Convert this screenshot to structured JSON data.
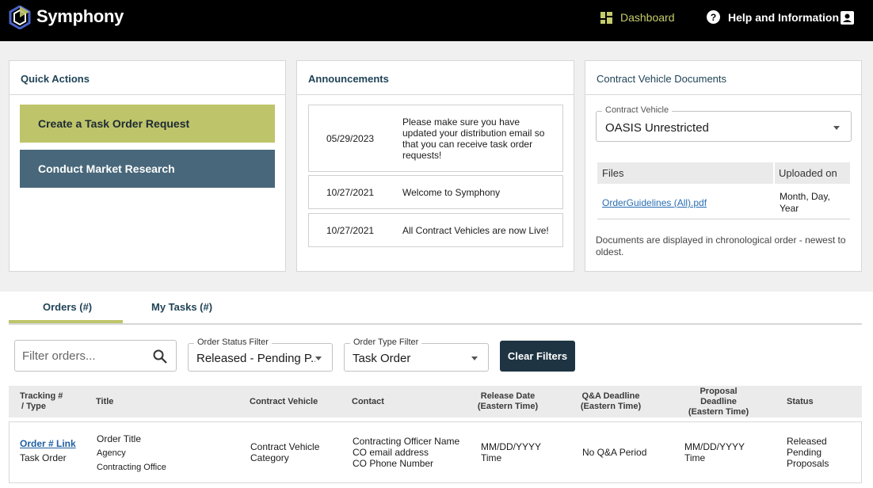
{
  "header": {
    "brand": "Symphony",
    "dashboard_label": "Dashboard",
    "help_label": "Help and Information"
  },
  "quick_actions": {
    "title": "Quick Actions",
    "create_label": "Create a Task Order Request",
    "research_label": "Conduct Market Research"
  },
  "announcements": {
    "title": "Announcements",
    "items": [
      {
        "date": "05/29/2023",
        "text": "Please make sure you have updated your distribution email so that you can receive task order requests!"
      },
      {
        "date": "10/27/2021",
        "text": "Welcome to Symphony"
      },
      {
        "date": "10/27/2021",
        "text": "All Contract Vehicles are now Live!"
      }
    ]
  },
  "cv_docs": {
    "title": "Contract Vehicle Documents",
    "field_label": "Contract Vehicle",
    "field_value": "OASIS Unrestricted",
    "col_files": "Files",
    "col_uploaded": "Uploaded on",
    "file_name": "OrderGuidelines (All).pdf",
    "file_date": "Month, Day, Year",
    "note": "Documents are displayed in chronological order - newest to oldest."
  },
  "tabs": {
    "orders": "Orders (#)",
    "tasks": "My Tasks (#)"
  },
  "filters": {
    "search_placeholder": "Filter orders...",
    "status_label": "Order Status Filter",
    "status_value": "Released - Pending P...",
    "type_label": "Order Type Filter",
    "type_value": "Task Order",
    "clear_label": "Clear Filters"
  },
  "table": {
    "headers": {
      "tracking": "Tracking #",
      "tracking2": "/ Type",
      "title": "Title",
      "vehicle": "Contract Vehicle",
      "contact": "Contact",
      "release": "Release Date",
      "release2": "(Eastern Time)",
      "qa": "Q&A Deadline",
      "qa2": "(Eastern Time)",
      "proposal": "Proposal",
      "proposal2": "Deadline",
      "proposal3": "(Eastern Time)",
      "status": "Status"
    },
    "row": {
      "order_link": "Order # Link",
      "order_type": "Task Order",
      "title": "Order Title",
      "agency": "Agency",
      "office": "Contracting Office",
      "vehicle": "Contract Vehicle",
      "category": "Category",
      "contact_name": "Contracting Officer Name",
      "contact_email": "CO email address",
      "contact_phone": "CO Phone Number",
      "release_date": "MM/DD/YYYY",
      "release_time": "Time",
      "qa": "No Q&A Period",
      "proposal_date": "MM/DD/YYYY",
      "proposal_time": "Time",
      "status1": "Released",
      "status2": "Pending",
      "status3": "Proposals"
    }
  },
  "colors": {
    "accent_green": "#bec46a",
    "slate_blue": "#48677a",
    "navy": "#1e3442"
  }
}
